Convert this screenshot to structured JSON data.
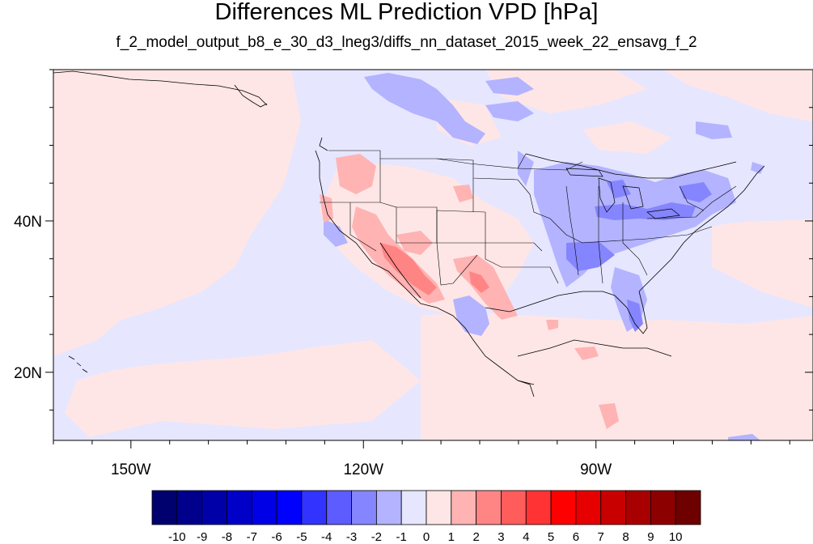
{
  "title": "Differences ML Prediction VPD [hPa]",
  "subtitle": "f_2_model_output_b8_e_30_d3_lneg3/diffs_nn_dataset_2015_week_22_ensavg_f_2",
  "map": {
    "lon_range": [
      -160,
      -62
    ],
    "lat_range": [
      11,
      60
    ],
    "x_ticks": [
      {
        "lon": -150,
        "label": "150W"
      },
      {
        "lon": -120,
        "label": "120W"
      },
      {
        "lon": -90,
        "label": "90W"
      }
    ],
    "y_ticks": [
      {
        "lat": 40,
        "label": "40N"
      },
      {
        "lat": 20,
        "label": "20N"
      }
    ],
    "minor_lon_step": 5,
    "minor_lat_step": 5
  },
  "colorbar": {
    "labels": [
      "-10",
      "-9",
      "-8",
      "-7",
      "-6",
      "-5",
      "-4",
      "-3",
      "-2",
      "-1",
      "0",
      "1",
      "2",
      "3",
      "4",
      "5",
      "6",
      "7",
      "8",
      "9",
      "10"
    ],
    "colors": [
      "#00006e",
      "#00008c",
      "#0000a8",
      "#0000c8",
      "#0000e6",
      "#0000ff",
      "#3333ff",
      "#5c5cff",
      "#8585ff",
      "#b3b3ff",
      "#e6e6ff",
      "#ffe6e6",
      "#ffb3b3",
      "#ff8585",
      "#ff5c5c",
      "#ff3333",
      "#ff0000",
      "#e60000",
      "#c80000",
      "#a80000",
      "#8c0000",
      "#6e0000"
    ]
  },
  "colors": {
    "ocean_base": "#e6e6ff",
    "pos_light": "#ffe6e6",
    "pos_mid": "#ffb3b3",
    "pos_strong": "#ff8585",
    "neg_light": "#e6e6ff",
    "neg_mid": "#b3b3ff",
    "neg_strong": "#8585ff",
    "coast": "#000000"
  }
}
